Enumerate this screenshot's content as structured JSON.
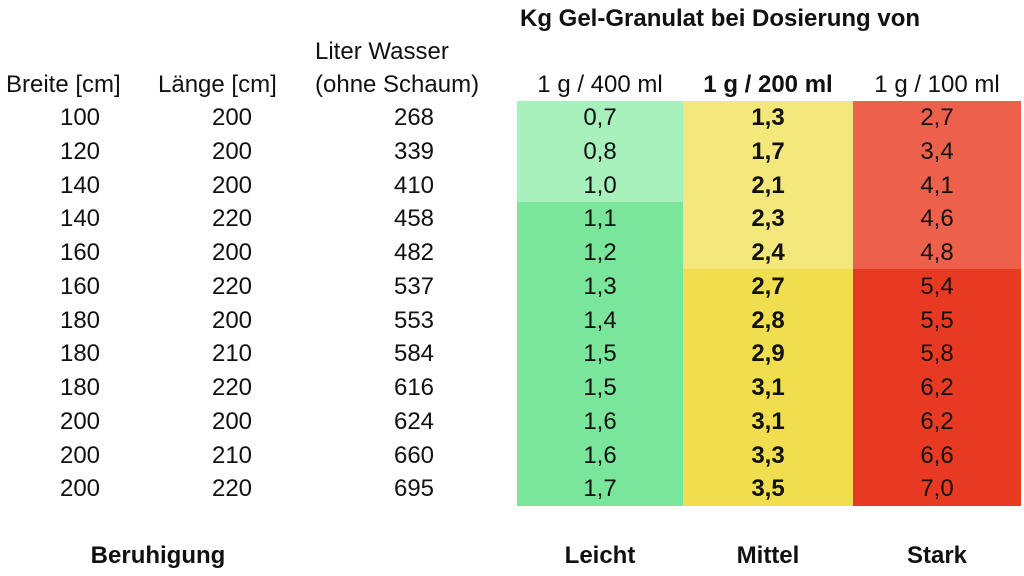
{
  "title": "Kg Gel-Granulat bei Dosierung von",
  "headers": {
    "breite": "Breite [cm]",
    "laenge": "Länge [cm]",
    "liter_line1": "Liter Wasser",
    "liter_line2": "(ohne Schaum)",
    "dose_400": "1 g / 400 ml",
    "dose_200": "1 g / 200 ml",
    "dose_100": "1 g / 100 ml"
  },
  "colors": {
    "leicht_light": "#a8f0bc",
    "leicht_dark": "#79e69c",
    "mittel_light": "#f4e77c",
    "mittel_dark": "#f1de4e",
    "stark_light": "#ec604c",
    "stark_dark": "#e83a22"
  },
  "rows": [
    {
      "breite": "100",
      "laenge": "200",
      "liter": "268",
      "leicht": "0,7",
      "mittel": "1,3",
      "stark": "2,7"
    },
    {
      "breite": "120",
      "laenge": "200",
      "liter": "339",
      "leicht": "0,8",
      "mittel": "1,7",
      "stark": "3,4"
    },
    {
      "breite": "140",
      "laenge": "200",
      "liter": "410",
      "leicht": "1,0",
      "mittel": "2,1",
      "stark": "4,1"
    },
    {
      "breite": "140",
      "laenge": "220",
      "liter": "458",
      "leicht": "1,1",
      "mittel": "2,3",
      "stark": "4,6"
    },
    {
      "breite": "160",
      "laenge": "200",
      "liter": "482",
      "leicht": "1,2",
      "mittel": "2,4",
      "stark": "4,8"
    },
    {
      "breite": "160",
      "laenge": "220",
      "liter": "537",
      "leicht": "1,3",
      "mittel": "2,7",
      "stark": "5,4"
    },
    {
      "breite": "180",
      "laenge": "200",
      "liter": "553",
      "leicht": "1,4",
      "mittel": "2,8",
      "stark": "5,5"
    },
    {
      "breite": "180",
      "laenge": "210",
      "liter": "584",
      "leicht": "1,5",
      "mittel": "2,9",
      "stark": "5,8"
    },
    {
      "breite": "180",
      "laenge": "220",
      "liter": "616",
      "leicht": "1,5",
      "mittel": "3,1",
      "stark": "6,2"
    },
    {
      "breite": "200",
      "laenge": "200",
      "liter": "624",
      "leicht": "1,6",
      "mittel": "3,1",
      "stark": "6,2"
    },
    {
      "breite": "200",
      "laenge": "210",
      "liter": "660",
      "leicht": "1,6",
      "mittel": "3,3",
      "stark": "6,6"
    },
    {
      "breite": "200",
      "laenge": "220",
      "liter": "695",
      "leicht": "1,7",
      "mittel": "3,5",
      "stark": "7,0"
    }
  ],
  "footer": {
    "beruhigung": "Beruhigung",
    "leicht": "Leicht",
    "mittel": "Mittel",
    "stark": "Stark"
  }
}
